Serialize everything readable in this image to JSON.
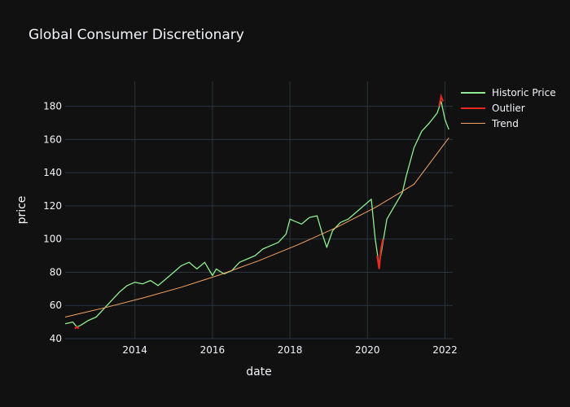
{
  "chart_data": {
    "type": "line",
    "title": "Global Consumer Discretionary",
    "xlabel": "date",
    "ylabel": "price",
    "xlim": [
      2012.2,
      2022.2
    ],
    "ylim": [
      40,
      195
    ],
    "x_ticks": [
      2014,
      2016,
      2018,
      2020,
      2022
    ],
    "y_ticks": [
      40,
      60,
      80,
      100,
      120,
      140,
      160,
      180
    ],
    "grid": true,
    "legend_position": "top-right",
    "colors": {
      "historic": "#90ee90",
      "outlier": "#e8281e",
      "trend": "#f4a460",
      "grid": "#283442",
      "background": "#111111"
    },
    "series": [
      {
        "name": "Historic Price",
        "x": [
          2012.2,
          2012.4,
          2012.5,
          2012.6,
          2012.8,
          2013.0,
          2013.2,
          2013.4,
          2013.6,
          2013.8,
          2014.0,
          2014.2,
          2014.4,
          2014.6,
          2014.8,
          2015.0,
          2015.2,
          2015.4,
          2015.6,
          2015.8,
          2016.0,
          2016.1,
          2016.3,
          2016.5,
          2016.7,
          2016.9,
          2017.1,
          2017.3,
          2017.5,
          2017.7,
          2017.9,
          2018.0,
          2018.1,
          2018.3,
          2018.5,
          2018.7,
          2018.85,
          2018.95,
          2019.1,
          2019.3,
          2019.5,
          2019.7,
          2019.9,
          2020.1,
          2020.2,
          2020.3,
          2020.4,
          2020.5,
          2020.7,
          2020.9,
          2021.0,
          2021.2,
          2021.4,
          2021.6,
          2021.8,
          2021.9,
          2022.0,
          2022.1
        ],
        "y": [
          49,
          50,
          47,
          48,
          51,
          53,
          58,
          63,
          68,
          72,
          74,
          73,
          75,
          72,
          76,
          80,
          84,
          86,
          82,
          86,
          78,
          82,
          79,
          81,
          86,
          88,
          90,
          94,
          96,
          98,
          103,
          112,
          111,
          109,
          113,
          114,
          102,
          95,
          105,
          110,
          112,
          116,
          120,
          124,
          100,
          84,
          98,
          112,
          120,
          128,
          138,
          155,
          165,
          170,
          176,
          183,
          172,
          166
        ]
      },
      {
        "name": "Outlier",
        "x": [
          2012.45,
          2012.5,
          2012.55,
          2018.95,
          2020.25,
          2020.3,
          2020.35,
          2020.4,
          2021.85,
          2021.9,
          2021.95
        ],
        "y": [
          46,
          47,
          46,
          92,
          90,
          82,
          94,
          100,
          180,
          186,
          183
        ]
      },
      {
        "name": "Trend",
        "x": [
          2012.2,
          2013.2,
          2014.2,
          2015.2,
          2016.2,
          2017.2,
          2018.2,
          2019.2,
          2020.2,
          2021.2,
          2022.1
        ],
        "y": [
          53,
          58.5,
          64.5,
          71,
          78.5,
          87,
          96.5,
          107,
          119,
          133,
          161
        ]
      }
    ]
  }
}
